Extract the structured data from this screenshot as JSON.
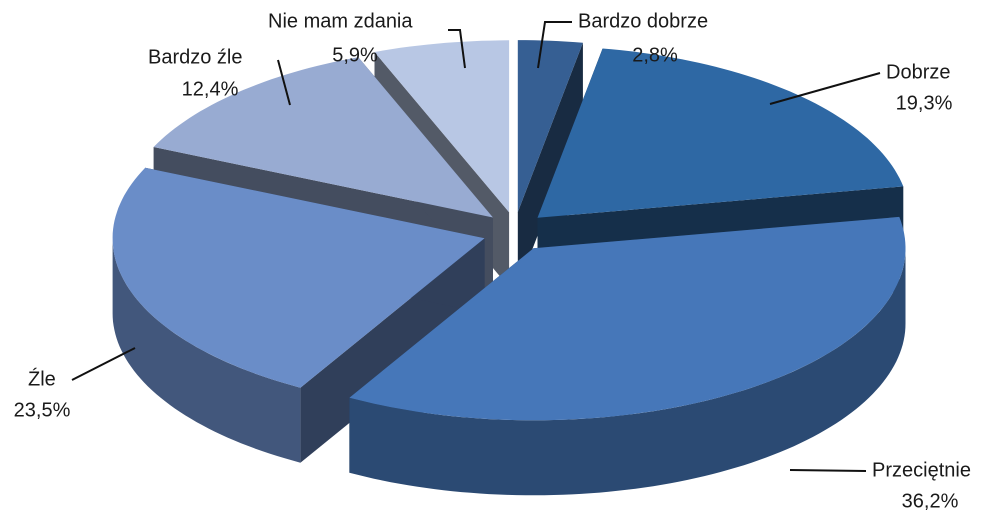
{
  "chart_data": {
    "type": "pie3d",
    "categories": [
      "Bardzo dobrze",
      "Dobrze",
      "Przeciętnie",
      "Źle",
      "Bardzo źle",
      "Nie mam zdania"
    ],
    "values": [
      2.8,
      19.3,
      36.2,
      23.5,
      12.4,
      5.9
    ],
    "value_labels": [
      "2,8%",
      "19,3%",
      "36,2%",
      "23,5%",
      "12,4%",
      "5,9%"
    ],
    "colors": [
      "#365f93",
      "#2e68a4",
      "#4677b9",
      "#6a8dc8",
      "#98abd2",
      "#b8c7e4"
    ],
    "exploded": true
  }
}
